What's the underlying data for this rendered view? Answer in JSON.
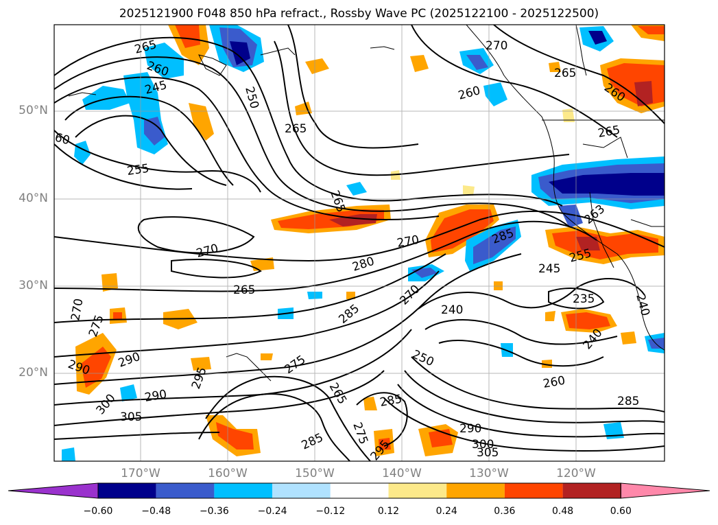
{
  "title": "2025121900 F048 850 hPa refract., Rossby Wave PC (2025122100 - 2025122500)",
  "lat_labels": [
    "50°N",
    "40°N",
    "30°N",
    "20°N"
  ],
  "lon_labels": [
    "170°W",
    "160°W",
    "150°W",
    "140°W",
    "130°W",
    "120°W"
  ],
  "colorbar": {
    "ticks": [
      "−0.60",
      "−0.48",
      "−0.36",
      "−0.24",
      "−0.12",
      "0.12",
      "0.24",
      "0.36",
      "0.48",
      "0.60"
    ],
    "colors": [
      "#9a32cd",
      "#00008b",
      "#3a5bcc",
      "#00bfff",
      "#b0e2ff",
      "#ffffff",
      "#fce98a",
      "#ffa500",
      "#ff4500",
      "#b22222",
      "#ff88aa"
    ]
  },
  "contour_labels": [
    "265",
    "260",
    "245",
    "250",
    "265",
    "270",
    "265",
    "260",
    "260",
    "265",
    "255",
    "265",
    "270",
    "280",
    "270",
    "265",
    "285",
    "270",
    "240",
    "245",
    "255",
    "263",
    "235",
    "240",
    "240",
    "270",
    "275",
    "290",
    "290",
    "290",
    "300",
    "305",
    "295",
    "275",
    "265",
    "285",
    "275",
    "285",
    "290",
    "300",
    "305",
    "295",
    "250",
    "260",
    "285",
    "285",
    "60"
  ]
}
